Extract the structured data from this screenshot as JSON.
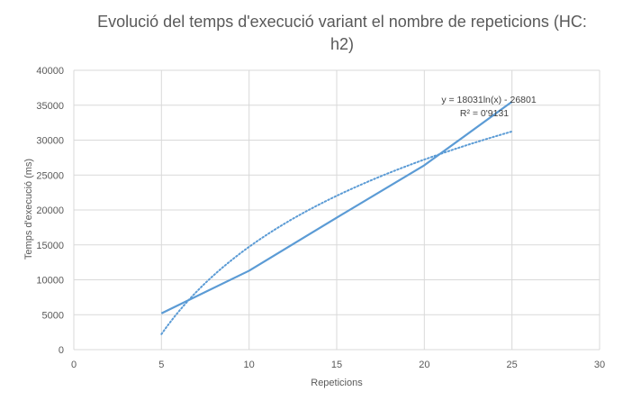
{
  "chart_data": {
    "type": "line",
    "title_line1": "Evolució del temps d'execució variant el nombre de repeticions  (HC:",
    "title_line2": "h2)",
    "xlabel": "Repeticions",
    "ylabel": "Temps d'execució (ms)",
    "xlim": [
      0,
      30
    ],
    "ylim": [
      0,
      40000
    ],
    "x_ticks": [
      0,
      5,
      10,
      15,
      20,
      25,
      30
    ],
    "y_ticks": [
      0,
      5000,
      10000,
      15000,
      20000,
      25000,
      30000,
      35000,
      40000
    ],
    "grid": true,
    "series": [
      {
        "style": "solid",
        "color": "#5b9bd5",
        "x": [
          5,
          10,
          15,
          20,
          25
        ],
        "y": [
          5200,
          11300,
          18900,
          26400,
          35500
        ]
      }
    ],
    "trendline": {
      "type": "logarithmic",
      "style": "dotted",
      "color": "#5b9bd5",
      "a": 18031,
      "b": -26801,
      "x_range": [
        5,
        25
      ],
      "equation": "y = 18031ln(x) - 26801",
      "r_squared": "R² = 0'9131"
    }
  }
}
